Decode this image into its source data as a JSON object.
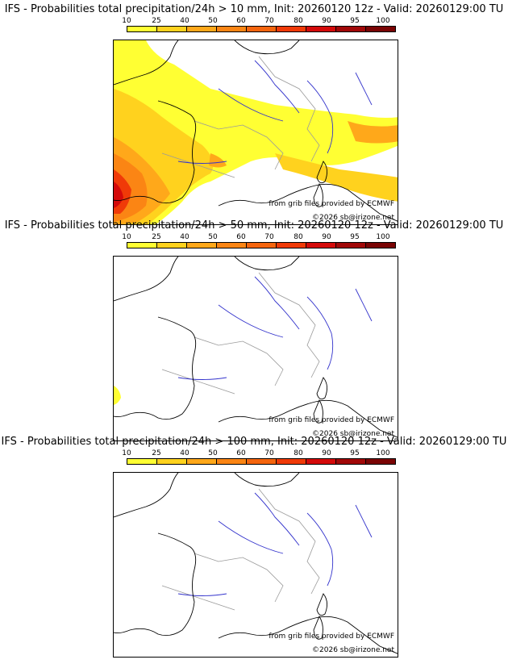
{
  "colors": {
    "scale": [
      "#ffff33",
      "#ffd21e",
      "#ffa81a",
      "#fb8514",
      "#f5650e",
      "#f03a08",
      "#d40a0a",
      "#a10808",
      "#7a0404",
      "#4a0000"
    ],
    "coast": "#000000",
    "border": "#9a9a9a",
    "river": "#3333cc"
  },
  "legend": {
    "ticks": [
      "10",
      "25",
      "40",
      "50",
      "60",
      "70",
      "80",
      "90",
      "95",
      "100"
    ]
  },
  "panels": [
    {
      "title": "IFS - Probabilities total precipitation/24h > 10 mm, Init: 20260120 12z - Valid: 20260129:00 TU",
      "threshold_mm": 10,
      "source_credit": "from grib files provided by ECMWF",
      "copyright": "©2026 sb@irizone.net"
    },
    {
      "title": "IFS - Probabilities total precipitation/24h > 50 mm, Init: 20260120 12z - Valid: 20260129:00 TU",
      "threshold_mm": 50,
      "source_credit": "from grib files provided by ECMWF",
      "copyright": "©2026 sb@irizone.net"
    },
    {
      "title": "IFS - Probabilities total precipitation/24h > 100 mm, Init: 20260120 12z - Valid: 20260129:00 TU",
      "threshold_mm": 100,
      "source_credit": "from grib files provided by ECMWF",
      "copyright": "©2026 sb@irizone.net"
    }
  ]
}
